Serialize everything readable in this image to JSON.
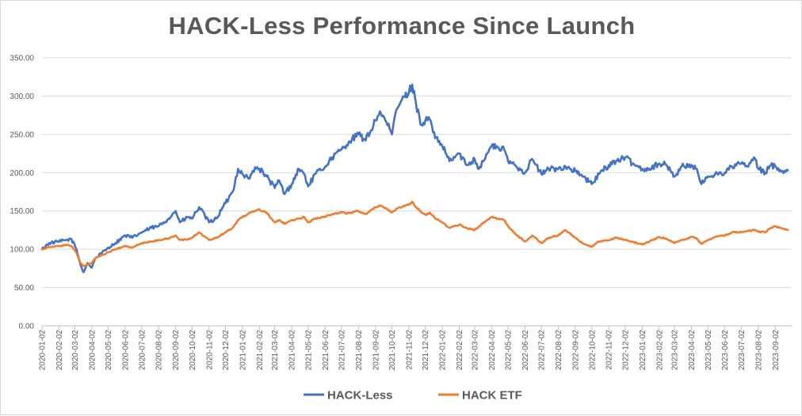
{
  "chart_data": {
    "type": "line",
    "title": "HACK-Less Performance Since Launch",
    "xlabel": "",
    "ylabel": "",
    "ylim": [
      0,
      350
    ],
    "yticks": [
      "0.00",
      "50.00",
      "100.00",
      "150.00",
      "200.00",
      "250.00",
      "300.00",
      "350.00"
    ],
    "x_tick_labels": [
      "2020-01-02",
      "2020-02-02",
      "2020-03-02",
      "2020-04-02",
      "2020-05-02",
      "2020-06-02",
      "2020-07-02",
      "2020-08-02",
      "2020-09-02",
      "2020-10-02",
      "2020-11-02",
      "2020-12-02",
      "2021-01-02",
      "2021-02-02",
      "2021-03-02",
      "2021-04-02",
      "2021-05-02",
      "2021-06-02",
      "2021-07-02",
      "2021-08-02",
      "2021-09-02",
      "2021-10-02",
      "2021-11-02",
      "2021-12-02",
      "2022-01-02",
      "2022-02-02",
      "2022-03-02",
      "2022-04-02",
      "2022-05-02",
      "2022-06-02",
      "2022-07-02",
      "2022-08-02",
      "2022-09-02",
      "2022-10-02",
      "2022-11-02",
      "2022-12-02",
      "2023-01-02",
      "2023-02-02",
      "2023-03-02",
      "2023-04-02",
      "2023-05-02",
      "2023-06-02",
      "2023-07-02",
      "2023-08-02",
      "2023-09-02"
    ],
    "grid": true,
    "legend_position": "bottom",
    "series": [
      {
        "name": "HACK-Less",
        "color": "#4472c4",
        "points": [
          [
            "2020-01-02",
            100
          ],
          [
            "2020-01-15",
            108
          ],
          [
            "2020-02-02",
            110
          ],
          [
            "2020-02-15",
            112
          ],
          [
            "2020-02-25",
            113
          ],
          [
            "2020-03-05",
            100
          ],
          [
            "2020-03-12",
            80
          ],
          [
            "2020-03-18",
            70
          ],
          [
            "2020-03-25",
            82
          ],
          [
            "2020-04-02",
            76
          ],
          [
            "2020-04-08",
            88
          ],
          [
            "2020-04-20",
            95
          ],
          [
            "2020-05-02",
            102
          ],
          [
            "2020-05-15",
            108
          ],
          [
            "2020-06-02",
            118
          ],
          [
            "2020-06-15",
            115
          ],
          [
            "2020-07-02",
            122
          ],
          [
            "2020-07-20",
            128
          ],
          [
            "2020-08-02",
            130
          ],
          [
            "2020-08-20",
            140
          ],
          [
            "2020-09-02",
            150
          ],
          [
            "2020-09-10",
            135
          ],
          [
            "2020-09-25",
            142
          ],
          [
            "2020-10-02",
            140
          ],
          [
            "2020-10-15",
            155
          ],
          [
            "2020-11-02",
            135
          ],
          [
            "2020-11-15",
            140
          ],
          [
            "2020-12-02",
            160
          ],
          [
            "2020-12-15",
            175
          ],
          [
            "2020-12-25",
            205
          ],
          [
            "2021-01-02",
            198
          ],
          [
            "2021-01-15",
            192
          ],
          [
            "2021-01-25",
            207
          ],
          [
            "2021-02-02",
            205
          ],
          [
            "2021-02-15",
            195
          ],
          [
            "2021-03-02",
            180
          ],
          [
            "2021-03-10",
            190
          ],
          [
            "2021-03-20",
            172
          ],
          [
            "2021-04-02",
            185
          ],
          [
            "2021-04-15",
            205
          ],
          [
            "2021-04-25",
            198
          ],
          [
            "2021-05-02",
            182
          ],
          [
            "2021-05-15",
            198
          ],
          [
            "2021-06-02",
            208
          ],
          [
            "2021-06-15",
            220
          ],
          [
            "2021-07-02",
            230
          ],
          [
            "2021-07-15",
            240
          ],
          [
            "2021-08-02",
            250
          ],
          [
            "2021-08-15",
            242
          ],
          [
            "2021-09-02",
            268
          ],
          [
            "2021-09-10",
            280
          ],
          [
            "2021-09-20",
            268
          ],
          [
            "2021-10-02",
            250
          ],
          [
            "2021-10-10",
            282
          ],
          [
            "2021-10-20",
            295
          ],
          [
            "2021-11-02",
            305
          ],
          [
            "2021-11-08",
            315
          ],
          [
            "2021-11-15",
            290
          ],
          [
            "2021-11-25",
            262
          ],
          [
            "2021-12-02",
            268
          ],
          [
            "2021-12-10",
            270
          ],
          [
            "2021-12-20",
            245
          ],
          [
            "2022-01-02",
            235
          ],
          [
            "2022-01-15",
            215
          ],
          [
            "2022-02-02",
            225
          ],
          [
            "2022-02-15",
            210
          ],
          [
            "2022-03-02",
            218
          ],
          [
            "2022-03-10",
            205
          ],
          [
            "2022-03-25",
            225
          ],
          [
            "2022-04-02",
            235
          ],
          [
            "2022-04-15",
            232
          ],
          [
            "2022-04-25",
            230
          ],
          [
            "2022-05-02",
            215
          ],
          [
            "2022-05-15",
            210
          ],
          [
            "2022-06-02",
            200
          ],
          [
            "2022-06-15",
            218
          ],
          [
            "2022-07-02",
            198
          ],
          [
            "2022-07-15",
            205
          ],
          [
            "2022-08-02",
            205
          ],
          [
            "2022-08-15",
            208
          ],
          [
            "2022-09-02",
            202
          ],
          [
            "2022-09-15",
            195
          ],
          [
            "2022-10-02",
            185
          ],
          [
            "2022-10-15",
            198
          ],
          [
            "2022-11-02",
            210
          ],
          [
            "2022-11-15",
            215
          ],
          [
            "2022-12-02",
            220
          ],
          [
            "2022-12-15",
            212
          ],
          [
            "2023-01-02",
            205
          ],
          [
            "2023-01-15",
            205
          ],
          [
            "2023-02-02",
            212
          ],
          [
            "2023-02-15",
            210
          ],
          [
            "2023-03-02",
            195
          ],
          [
            "2023-03-15",
            208
          ],
          [
            "2023-04-02",
            210
          ],
          [
            "2023-04-10",
            205
          ],
          [
            "2023-04-20",
            185
          ],
          [
            "2023-05-02",
            195
          ],
          [
            "2023-05-15",
            198
          ],
          [
            "2023-06-02",
            200
          ],
          [
            "2023-06-15",
            208
          ],
          [
            "2023-07-02",
            212
          ],
          [
            "2023-07-15",
            208
          ],
          [
            "2023-07-25",
            220
          ],
          [
            "2023-08-02",
            205
          ],
          [
            "2023-08-15",
            200
          ],
          [
            "2023-08-25",
            210
          ],
          [
            "2023-09-02",
            208
          ],
          [
            "2023-09-15",
            202
          ],
          [
            "2023-09-25",
            203
          ]
        ]
      },
      {
        "name": "HACK ETF",
        "color": "#ed7d31",
        "points": [
          [
            "2020-01-02",
            100
          ],
          [
            "2020-01-15",
            103
          ],
          [
            "2020-02-02",
            104
          ],
          [
            "2020-02-15",
            106
          ],
          [
            "2020-02-25",
            104
          ],
          [
            "2020-03-05",
            95
          ],
          [
            "2020-03-12",
            82
          ],
          [
            "2020-03-18",
            78
          ],
          [
            "2020-03-25",
            80
          ],
          [
            "2020-04-02",
            82
          ],
          [
            "2020-04-08",
            88
          ],
          [
            "2020-04-20",
            92
          ],
          [
            "2020-05-02",
            96
          ],
          [
            "2020-05-15",
            100
          ],
          [
            "2020-06-02",
            104
          ],
          [
            "2020-06-15",
            102
          ],
          [
            "2020-07-02",
            108
          ],
          [
            "2020-07-20",
            110
          ],
          [
            "2020-08-02",
            112
          ],
          [
            "2020-08-20",
            114
          ],
          [
            "2020-09-02",
            118
          ],
          [
            "2020-09-10",
            112
          ],
          [
            "2020-09-25",
            113
          ],
          [
            "2020-10-02",
            115
          ],
          [
            "2020-10-15",
            122
          ],
          [
            "2020-11-02",
            112
          ],
          [
            "2020-11-15",
            115
          ],
          [
            "2020-12-02",
            122
          ],
          [
            "2020-12-15",
            128
          ],
          [
            "2020-12-25",
            138
          ],
          [
            "2021-01-02",
            142
          ],
          [
            "2021-01-15",
            148
          ],
          [
            "2021-01-25",
            150
          ],
          [
            "2021-02-02",
            152
          ],
          [
            "2021-02-15",
            148
          ],
          [
            "2021-03-02",
            135
          ],
          [
            "2021-03-10",
            138
          ],
          [
            "2021-03-20",
            133
          ],
          [
            "2021-04-02",
            138
          ],
          [
            "2021-04-15",
            140
          ],
          [
            "2021-04-25",
            142
          ],
          [
            "2021-05-02",
            135
          ],
          [
            "2021-05-15",
            140
          ],
          [
            "2021-06-02",
            143
          ],
          [
            "2021-06-15",
            146
          ],
          [
            "2021-07-02",
            148
          ],
          [
            "2021-07-15",
            147
          ],
          [
            "2021-08-02",
            150
          ],
          [
            "2021-08-15",
            146
          ],
          [
            "2021-09-02",
            155
          ],
          [
            "2021-09-10",
            157
          ],
          [
            "2021-09-20",
            154
          ],
          [
            "2021-10-02",
            148
          ],
          [
            "2021-10-10",
            153
          ],
          [
            "2021-10-20",
            155
          ],
          [
            "2021-11-02",
            158
          ],
          [
            "2021-11-08",
            162
          ],
          [
            "2021-11-15",
            155
          ],
          [
            "2021-11-25",
            148
          ],
          [
            "2021-12-02",
            145
          ],
          [
            "2021-12-10",
            148
          ],
          [
            "2021-12-20",
            140
          ],
          [
            "2022-01-02",
            135
          ],
          [
            "2022-01-15",
            128
          ],
          [
            "2022-02-02",
            132
          ],
          [
            "2022-02-15",
            128
          ],
          [
            "2022-03-02",
            125
          ],
          [
            "2022-03-10",
            130
          ],
          [
            "2022-03-25",
            138
          ],
          [
            "2022-04-02",
            142
          ],
          [
            "2022-04-15",
            140
          ],
          [
            "2022-04-25",
            138
          ],
          [
            "2022-05-02",
            130
          ],
          [
            "2022-05-15",
            120
          ],
          [
            "2022-06-02",
            110
          ],
          [
            "2022-06-15",
            118
          ],
          [
            "2022-07-02",
            108
          ],
          [
            "2022-07-15",
            115
          ],
          [
            "2022-08-02",
            118
          ],
          [
            "2022-08-15",
            125
          ],
          [
            "2022-09-02",
            115
          ],
          [
            "2022-09-15",
            108
          ],
          [
            "2022-10-02",
            103
          ],
          [
            "2022-10-15",
            110
          ],
          [
            "2022-11-02",
            112
          ],
          [
            "2022-11-15",
            115
          ],
          [
            "2022-12-02",
            112
          ],
          [
            "2022-12-15",
            110
          ],
          [
            "2023-01-02",
            106
          ],
          [
            "2023-01-15",
            110
          ],
          [
            "2023-02-02",
            116
          ],
          [
            "2023-02-15",
            114
          ],
          [
            "2023-03-02",
            108
          ],
          [
            "2023-03-15",
            112
          ],
          [
            "2023-04-02",
            116
          ],
          [
            "2023-04-10",
            115
          ],
          [
            "2023-04-20",
            107
          ],
          [
            "2023-05-02",
            112
          ],
          [
            "2023-05-15",
            116
          ],
          [
            "2023-06-02",
            118
          ],
          [
            "2023-06-15",
            122
          ],
          [
            "2023-07-02",
            123
          ],
          [
            "2023-07-15",
            124
          ],
          [
            "2023-07-25",
            125
          ],
          [
            "2023-08-02",
            123
          ],
          [
            "2023-08-15",
            122
          ],
          [
            "2023-08-25",
            128
          ],
          [
            "2023-09-02",
            130
          ],
          [
            "2023-09-15",
            127
          ],
          [
            "2023-09-25",
            125
          ]
        ]
      }
    ]
  }
}
